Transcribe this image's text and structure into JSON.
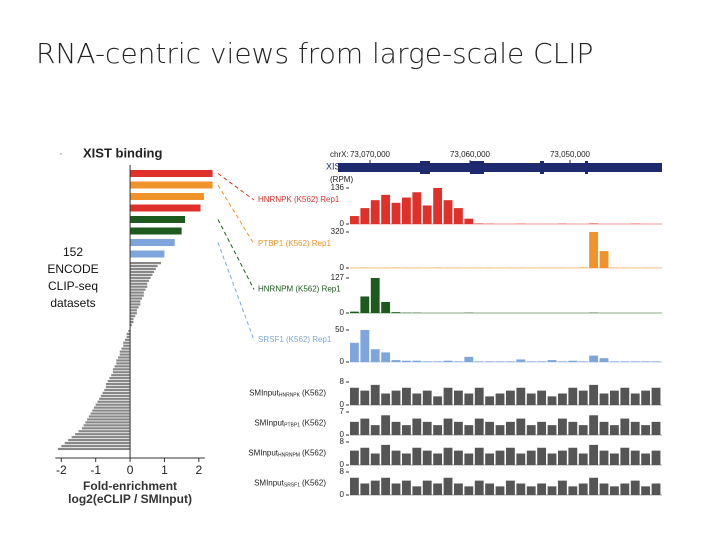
{
  "slide_title": "RNA-centric views from large-scale CLIP",
  "side_label": [
    "152",
    "ENCODE",
    "CLIP-seq",
    "datasets"
  ],
  "chart_data": [
    {
      "type": "hbar",
      "title": "XIST binding",
      "xlabel": "Fold-enrichment",
      "xlabel2": "log2(eCLIP / SMInput)",
      "xlim": [
        -2.3,
        2.5
      ],
      "xticks": [
        -2,
        -1,
        0,
        1,
        2
      ],
      "values": [
        2.4,
        2.4,
        2.15,
        2.05,
        1.6,
        1.5,
        1.3,
        1.0,
        0.9,
        0.8,
        0.75,
        0.7,
        0.65,
        0.6,
        0.55,
        0.5,
        0.5,
        0.45,
        0.4,
        0.4,
        0.35,
        0.3,
        0.3,
        0.25,
        0.2,
        0.2,
        0.15,
        0.1,
        0.1,
        0.05,
        0,
        -0.05,
        -0.1,
        -0.1,
        -0.15,
        -0.2,
        -0.2,
        -0.25,
        -0.3,
        -0.3,
        -0.35,
        -0.4,
        -0.4,
        -0.45,
        -0.5,
        -0.5,
        -0.55,
        -0.6,
        -0.65,
        -0.7,
        -0.7,
        -0.75,
        -0.8,
        -0.85,
        -0.9,
        -0.95,
        -1.0,
        -1.05,
        -1.1,
        -1.15,
        -1.2,
        -1.25,
        -1.3,
        -1.35,
        -1.4,
        -1.5,
        -1.6,
        -1.7,
        -1.8,
        -1.9,
        -2.0,
        -2.1
      ],
      "colors": [
        "#e0302a",
        "#f0932b",
        "#f0932b",
        "#e0302a",
        "#1e5a1e",
        "#1e5a1e",
        "#7fa6dc",
        "#7fa6dc",
        "#888888",
        "#888888",
        "#888888",
        "#888888",
        "#888888",
        "#888888",
        "#888888",
        "#888888",
        "#888888",
        "#888888",
        "#888888",
        "#888888",
        "#888888",
        "#888888",
        "#888888",
        "#888888",
        "#888888",
        "#888888",
        "#888888",
        "#888888",
        "#888888",
        "#888888",
        "#888888",
        "#888888",
        "#888888",
        "#888888",
        "#888888",
        "#888888",
        "#888888",
        "#888888",
        "#888888",
        "#888888",
        "#888888",
        "#888888",
        "#888888",
        "#888888",
        "#888888",
        "#888888",
        "#888888",
        "#888888",
        "#888888",
        "#888888",
        "#888888",
        "#888888",
        "#888888",
        "#888888",
        "#888888",
        "#888888",
        "#888888",
        "#888888",
        "#888888",
        "#888888",
        "#888888",
        "#888888",
        "#888888",
        "#888888",
        "#888888",
        "#888888",
        "#888888",
        "#888888",
        "#888888",
        "#888888",
        "#888888",
        "#888888"
      ]
    },
    {
      "type": "tracks",
      "chrom": "chrX:",
      "gene": "XIST",
      "unit": "(RPM)",
      "xlim": [
        73073200,
        73040800
      ],
      "xticks": [
        {
          "value": 73070000,
          "label": "73,070,000"
        },
        {
          "value": 73060000,
          "label": "73,060,000"
        },
        {
          "value": 73050000,
          "label": "73,050,000"
        }
      ],
      "tracks": [
        {
          "name": "HNRNPK (K562) Rep1",
          "color": "#e0302a",
          "ylim": [
            0,
            136
          ],
          "yticks": [
            0,
            136
          ],
          "values": [
            30,
            60,
            90,
            110,
            80,
            100,
            120,
            70,
            136,
            90,
            60,
            20,
            2,
            1,
            0,
            0,
            1,
            0,
            0,
            0,
            1,
            0,
            0,
            2,
            0,
            0,
            0,
            1,
            0,
            0
          ]
        },
        {
          "name": "PTBP1 (K562) Rep1",
          "color": "#f0932b",
          "ylim": [
            0,
            320
          ],
          "yticks": [
            0,
            320
          ],
          "values": [
            2,
            3,
            2,
            2,
            3,
            2,
            2,
            2,
            3,
            2,
            2,
            2,
            2,
            2,
            2,
            2,
            2,
            2,
            2,
            2,
            2,
            2,
            5,
            320,
            150,
            3,
            2,
            2,
            2,
            2
          ]
        },
        {
          "name": "HNRNPM (K562) Rep1",
          "color": "#1e5a1e",
          "ylim": [
            0,
            127
          ],
          "yticks": [
            0,
            127
          ],
          "values": [
            5,
            60,
            127,
            40,
            3,
            1,
            1,
            0,
            0,
            0,
            0,
            1,
            0,
            0,
            0,
            0,
            0,
            0,
            0,
            0,
            0,
            0,
            0,
            1,
            0,
            0,
            0,
            0,
            0,
            0
          ]
        },
        {
          "name": "SRSF1 (K562) Rep1",
          "color": "#7fa6dc",
          "ylim": [
            0,
            50
          ],
          "yticks": [
            0,
            50
          ],
          "values": [
            30,
            50,
            20,
            15,
            3,
            2,
            2,
            1,
            1,
            2,
            1,
            8,
            1,
            1,
            1,
            1,
            4,
            1,
            1,
            3,
            1,
            2,
            1,
            10,
            6,
            1,
            1,
            1,
            1,
            1
          ]
        },
        {
          "name": "SMInput",
          "sub": "HNRNPK",
          "suffix": "(K562)",
          "color": "#555555",
          "ylim": [
            0,
            8
          ],
          "yticks": [
            0,
            8
          ],
          "values": [
            6,
            5,
            7,
            4,
            5,
            6,
            4,
            5,
            3,
            6,
            5,
            4,
            6,
            3,
            4,
            5,
            6,
            4,
            5,
            3,
            4,
            6,
            5,
            7,
            4,
            5,
            6,
            4,
            5,
            6
          ]
        },
        {
          "name": "SMInput",
          "sub": "PTBP1",
          "suffix": "(K562)",
          "color": "#555555",
          "ylim": [
            0,
            7
          ],
          "yticks": [
            0,
            7
          ],
          "values": [
            4,
            5,
            3,
            6,
            4,
            3,
            5,
            4,
            3,
            5,
            4,
            3,
            5,
            4,
            3,
            4,
            5,
            3,
            4,
            3,
            5,
            4,
            3,
            6,
            4,
            3,
            5,
            4,
            3,
            4
          ]
        },
        {
          "name": "SMInput",
          "sub": "HNRNPM",
          "suffix": "(K562)",
          "color": "#555555",
          "ylim": [
            0,
            8
          ],
          "yticks": [
            0,
            8
          ],
          "values": [
            5,
            6,
            4,
            7,
            5,
            4,
            6,
            5,
            4,
            6,
            5,
            4,
            6,
            4,
            5,
            6,
            4,
            5,
            6,
            4,
            5,
            6,
            4,
            7,
            5,
            4,
            6,
            5,
            4,
            5
          ]
        },
        {
          "name": "SMInput",
          "sub": "SRSF1",
          "suffix": "(K562)",
          "color": "#555555",
          "ylim": [
            0,
            8
          ],
          "yticks": [
            0,
            8
          ],
          "values": [
            6,
            4,
            5,
            6,
            4,
            5,
            3,
            5,
            4,
            6,
            4,
            3,
            5,
            4,
            3,
            5,
            4,
            3,
            4,
            3,
            5,
            3,
            4,
            6,
            4,
            3,
            4,
            5,
            3,
            4
          ]
        }
      ]
    }
  ]
}
